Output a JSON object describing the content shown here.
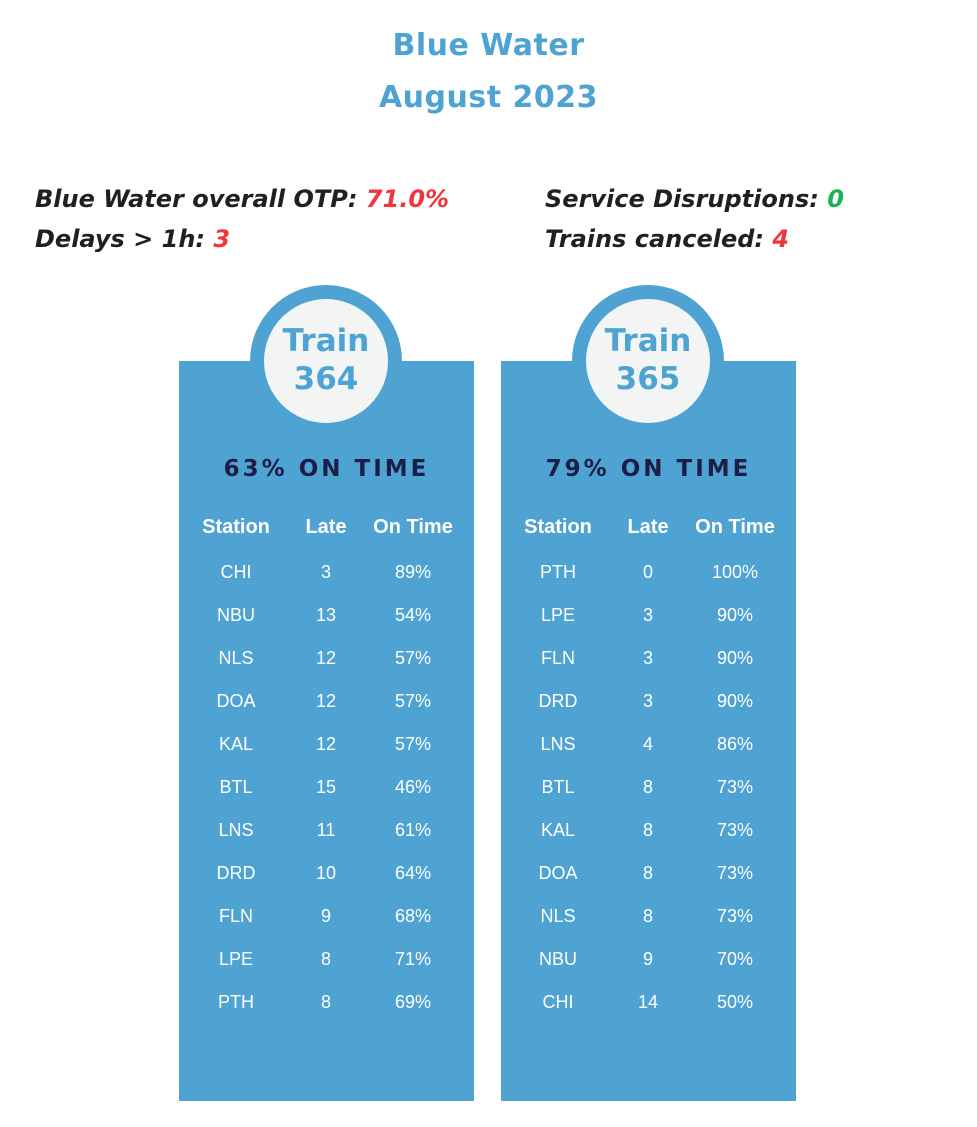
{
  "title": {
    "line1": "Blue Water",
    "line2": "August 2023"
  },
  "stats": {
    "otp_label": "Blue Water overall OTP: ",
    "otp_value": "71.0%",
    "delays_label": "Delays > 1h: ",
    "delays_value": "3",
    "disruptions_label": "Service Disruptions: ",
    "disruptions_value": "0",
    "canceled_label": "Trains canceled: ",
    "canceled_value": "4"
  },
  "colors": {
    "accent": "#4fa3d3",
    "heading_dark": "#1c1e48",
    "bad": "#f0363c",
    "good": "#19b34f"
  },
  "trains": [
    {
      "badge_word": "Train",
      "number": "364",
      "ontime_heading": "63% ON TIME",
      "headers": {
        "station": "Station",
        "late": "Late",
        "ontime": "On Time"
      },
      "rows": [
        {
          "station": "CHI",
          "late": "3",
          "ontime": "89%"
        },
        {
          "station": "NBU",
          "late": "13",
          "ontime": "54%"
        },
        {
          "station": "NLS",
          "late": "12",
          "ontime": "57%"
        },
        {
          "station": "DOA",
          "late": "12",
          "ontime": "57%"
        },
        {
          "station": "KAL",
          "late": "12",
          "ontime": "57%"
        },
        {
          "station": "BTL",
          "late": "15",
          "ontime": "46%"
        },
        {
          "station": "LNS",
          "late": "11",
          "ontime": "61%"
        },
        {
          "station": "DRD",
          "late": "10",
          "ontime": "64%"
        },
        {
          "station": "FLN",
          "late": "9",
          "ontime": "68%"
        },
        {
          "station": "LPE",
          "late": "8",
          "ontime": "71%"
        },
        {
          "station": "PTH",
          "late": "8",
          "ontime": "69%"
        }
      ]
    },
    {
      "badge_word": "Train",
      "number": "365",
      "ontime_heading": "79% ON TIME",
      "headers": {
        "station": "Station",
        "late": "Late",
        "ontime": "On Time"
      },
      "rows": [
        {
          "station": "PTH",
          "late": "0",
          "ontime": "100%"
        },
        {
          "station": "LPE",
          "late": "3",
          "ontime": "90%"
        },
        {
          "station": "FLN",
          "late": "3",
          "ontime": "90%"
        },
        {
          "station": "DRD",
          "late": "3",
          "ontime": "90%"
        },
        {
          "station": "LNS",
          "late": "4",
          "ontime": "86%"
        },
        {
          "station": "BTL",
          "late": "8",
          "ontime": "73%"
        },
        {
          "station": "KAL",
          "late": "8",
          "ontime": "73%"
        },
        {
          "station": "DOA",
          "late": "8",
          "ontime": "73%"
        },
        {
          "station": "NLS",
          "late": "8",
          "ontime": "73%"
        },
        {
          "station": "NBU",
          "late": "9",
          "ontime": "70%"
        },
        {
          "station": "CHI",
          "late": "14",
          "ontime": "50%"
        }
      ]
    }
  ]
}
